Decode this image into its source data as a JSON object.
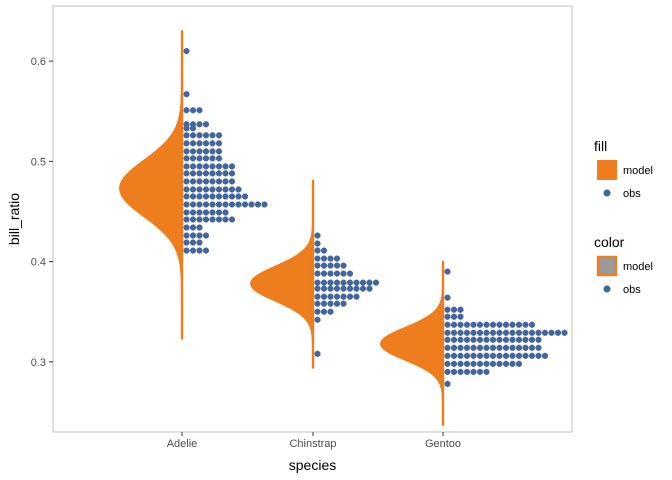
{
  "chart_data": {
    "type": "half-eye-dotplot",
    "title": "",
    "xlabel": "species",
    "ylabel": "bill_ratio",
    "categories": [
      "Adelie",
      "Chinstrap",
      "Gentoo"
    ],
    "ylim": [
      0.23,
      0.655
    ],
    "yticks": [
      0.3,
      0.4,
      0.5,
      0.6
    ],
    "grid": false,
    "legend_position": "right",
    "colors": {
      "model": "#EE7D1E",
      "obs": "#3F66A1",
      "obs_outline": "#5E6F8A",
      "color_key_fill": "#999999",
      "panel_border": "#CCCCCC"
    },
    "model": [
      {
        "category": "Adelie",
        "mean": 0.473,
        "sd": 0.028,
        "min": 0.323,
        "max": 0.63
      },
      {
        "category": "Chinstrap",
        "mean": 0.378,
        "sd": 0.017,
        "min": 0.294,
        "max": 0.481
      },
      {
        "category": "Gentoo",
        "mean": 0.318,
        "sd": 0.016,
        "min": 0.237,
        "max": 0.4
      }
    ],
    "obs": [
      {
        "category": "Adelie",
        "bin_width": 0.0077,
        "bins": [
          {
            "y": 0.411,
            "count": 4
          },
          {
            "y": 0.419,
            "count": 3
          },
          {
            "y": 0.426,
            "count": 4
          },
          {
            "y": 0.434,
            "count": 3
          },
          {
            "y": 0.442,
            "count": 8
          },
          {
            "y": 0.449,
            "count": 7
          },
          {
            "y": 0.457,
            "count": 13
          },
          {
            "y": 0.465,
            "count": 10
          },
          {
            "y": 0.472,
            "count": 9
          },
          {
            "y": 0.48,
            "count": 8
          },
          {
            "y": 0.488,
            "count": 8
          },
          {
            "y": 0.495,
            "count": 8
          },
          {
            "y": 0.503,
            "count": 6
          },
          {
            "y": 0.51,
            "count": 6
          },
          {
            "y": 0.518,
            "count": 6
          },
          {
            "y": 0.526,
            "count": 6
          },
          {
            "y": 0.533,
            "count": 2
          },
          {
            "y": 0.537,
            "count": 4
          },
          {
            "y": 0.551,
            "count": 3
          },
          {
            "y": 0.567,
            "count": 1
          },
          {
            "y": 0.61,
            "count": 1
          }
        ]
      },
      {
        "category": "Chinstrap",
        "bin_width": 0.0077,
        "bins": [
          {
            "y": 0.308,
            "count": 1
          },
          {
            "y": 0.342,
            "count": 1
          },
          {
            "y": 0.35,
            "count": 3
          },
          {
            "y": 0.358,
            "count": 5
          },
          {
            "y": 0.365,
            "count": 7
          },
          {
            "y": 0.373,
            "count": 9
          },
          {
            "y": 0.379,
            "count": 10
          },
          {
            "y": 0.388,
            "count": 6
          },
          {
            "y": 0.396,
            "count": 5
          },
          {
            "y": 0.403,
            "count": 4
          },
          {
            "y": 0.411,
            "count": 2
          },
          {
            "y": 0.418,
            "count": 1
          },
          {
            "y": 0.426,
            "count": 1
          }
        ]
      },
      {
        "category": "Gentoo",
        "bin_width": 0.0077,
        "bins": [
          {
            "y": 0.278,
            "count": 1
          },
          {
            "y": 0.29,
            "count": 7
          },
          {
            "y": 0.298,
            "count": 12
          },
          {
            "y": 0.306,
            "count": 16
          },
          {
            "y": 0.314,
            "count": 15
          },
          {
            "y": 0.322,
            "count": 15
          },
          {
            "y": 0.329,
            "count": 19
          },
          {
            "y": 0.337,
            "count": 14
          },
          {
            "y": 0.345,
            "count": 3
          },
          {
            "y": 0.352,
            "count": 3
          },
          {
            "y": 0.364,
            "count": 1
          },
          {
            "y": 0.39,
            "count": 1
          }
        ]
      }
    ],
    "legends": [
      {
        "title": "fill",
        "entries": [
          {
            "label": "model",
            "key": "fill-model"
          },
          {
            "label": "obs",
            "key": "fill-obs"
          }
        ]
      },
      {
        "title": "color",
        "entries": [
          {
            "label": "model",
            "key": "color-model"
          },
          {
            "label": "obs",
            "key": "color-obs"
          }
        ]
      }
    ]
  }
}
